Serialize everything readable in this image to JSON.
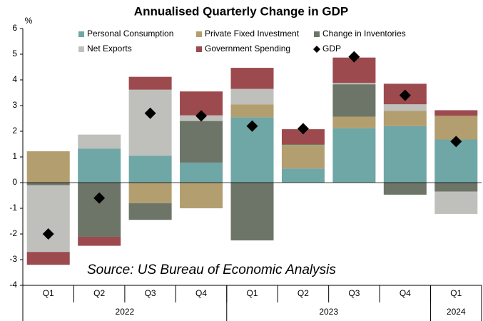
{
  "chart_data": {
    "type": "bar",
    "stacked": true,
    "title": "Annualised Quarterly Change in GDP",
    "y_unit": "%",
    "annotation": "Source: US Bureau of Economic Analysis",
    "categories": [
      "Q1",
      "Q2",
      "Q3",
      "Q4",
      "Q1",
      "Q2",
      "Q3",
      "Q4",
      "Q1"
    ],
    "year_groups": [
      {
        "label": "2022",
        "count": 4
      },
      {
        "label": "2023",
        "count": 4
      },
      {
        "label": "2024",
        "count": 1
      }
    ],
    "series": [
      {
        "name": "Personal Consumption",
        "color": "#6fa6a6",
        "values": [
          0,
          1.32,
          1.05,
          0.78,
          2.55,
          0.55,
          2.12,
          2.2,
          1.68
        ]
      },
      {
        "name": "Private Fixed Investment",
        "color": "#b39e6f",
        "values": [
          1.22,
          0,
          -0.8,
          -1.0,
          0.5,
          0.92,
          0.45,
          0.6,
          0.92
        ]
      },
      {
        "name": "Change in Inventories",
        "color": "#6c7567",
        "values": [
          -0.1,
          -2.11,
          -0.65,
          1.62,
          -2.25,
          0.03,
          1.26,
          -0.47,
          -0.35
        ]
      },
      {
        "name": "Net Exports",
        "color": "#bfc0bb",
        "values": [
          -2.6,
          0.55,
          2.57,
          0.22,
          0.6,
          0,
          0.05,
          0.25,
          -0.87
        ]
      },
      {
        "name": "Government Spending",
        "color": "#9c4a4e",
        "values": [
          -0.5,
          -0.35,
          0.5,
          0.93,
          0.82,
          0.58,
          0.99,
          0.8,
          0.22
        ]
      },
      {
        "name": "GDP",
        "type": "scatter",
        "marker": "diamond",
        "color": "#000000",
        "values": [
          -2.0,
          -0.6,
          2.7,
          2.6,
          2.2,
          2.1,
          4.9,
          3.4,
          1.6
        ]
      }
    ],
    "ylim": [
      -4,
      6
    ],
    "yticks": [
      -4,
      -3,
      -2,
      -1,
      0,
      1,
      2,
      3,
      4,
      5,
      6
    ],
    "grid": false,
    "legend": "top"
  }
}
